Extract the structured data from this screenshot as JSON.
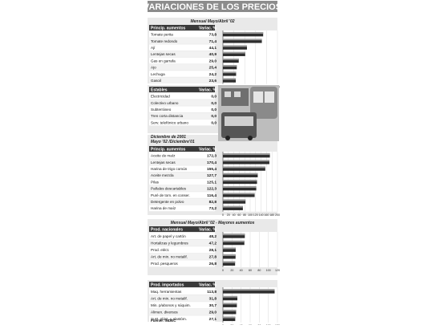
{
  "title": "VARIACIONES DE LOS PRECIOS",
  "source": "Fuente: INDEC",
  "colors": {
    "panel": "#e9e9e9",
    "header_dark": "#3a3a3a",
    "bar_dark": "#2d2d2d",
    "bar_light": "#9a9a9a",
    "row_alt": "#f2f2f2",
    "title_bg": "#8c8c8c"
  },
  "chart_data": [
    {
      "type": "bar",
      "subtitle": "Mensual Mayo/Abril '02",
      "col_label": "Princip. aumentos",
      "val_label": "Variac. %",
      "categories": [
        "Tomate perita",
        "Tomate redondo",
        "Ají",
        "Lentejas secas",
        "Gas en garrafa",
        "Ajo",
        "Lechuga",
        "Gasoil"
      ],
      "display": [
        "73,8",
        "71,4",
        "44,1",
        "40,9",
        "29,0",
        "25,4",
        "24,2",
        "23,6"
      ],
      "values": [
        73.8,
        71.4,
        44.1,
        40.9,
        29.0,
        25.4,
        24.2,
        23.6
      ],
      "ticks": [
        "0",
        "20",
        "40",
        "60",
        "80",
        "100"
      ],
      "xlim": [
        0,
        100
      ]
    },
    {
      "type": "table",
      "col_label": "Estables",
      "val_label": "Variac. %",
      "categories": [
        "Electricidad",
        "Colectivo urbano",
        "Subterráneo",
        "Tren corta distancia",
        "Serv. telefónico urbano"
      ],
      "display": [
        "0,0",
        "0,0",
        "0,0",
        "0,0",
        "0,0"
      ],
      "values": [
        0,
        0,
        0,
        0,
        0
      ]
    },
    {
      "type": "bar",
      "subtitle": "Diciembre de 2001",
      "subtitle2": "Mayo '02 /Diciembre'01",
      "col_label": "Princip. aumentos",
      "val_label": "Variac. %",
      "categories": [
        "Aceite de maíz",
        "Lentejas secas",
        "Harina de trigo común",
        "Aceite mezcla",
        "Pilas",
        "Pañales descartables",
        "Puré de tom. en conser.",
        "Detergente en polvo",
        "Harina de maíz"
      ],
      "display": [
        "172,3",
        "170,4",
        "155,4",
        "127,7",
        "125,1",
        "122,3",
        "116,4",
        "82,8",
        "73,2"
      ],
      "values": [
        172.3,
        170.4,
        155.4,
        127.7,
        125.1,
        122.3,
        116.4,
        82.8,
        73.2
      ],
      "ticks": [
        "0",
        "20",
        "40",
        "60",
        "80",
        "100",
        "120",
        "140",
        "160",
        "180",
        "200"
      ],
      "xlim": [
        0,
        200
      ]
    },
    {
      "type": "bar",
      "subtitle": "Mensual Mayo/Abril '02 - Mayores aumentos",
      "col_label": "Prod. nacionales",
      "val_label": "Variac. %",
      "categories": [
        "Art. de papel y cartón",
        "Hortalizas y legumbres",
        "Prod. eléct.",
        "Art. de min. no metalif.",
        "Prod. pesqueros"
      ],
      "display": [
        "48,2",
        "47,2",
        "28,1",
        "27,8",
        "26,8"
      ],
      "values": [
        48.2,
        47.2,
        28.1,
        27.8,
        26.8
      ],
      "ticks": [
        "0",
        "20",
        "40",
        "60",
        "80",
        "100",
        "120"
      ],
      "xlim": [
        0,
        120
      ]
    },
    {
      "type": "bar",
      "col_label": "Prod. importados",
      "val_label": "Variac. %",
      "categories": [
        "Maq. herramientas",
        "Art. de min. no metalif.",
        "Min. p/abonos y súquim.",
        "Alimen. diversos",
        "Sust. plást. y elastóm."
      ],
      "display": [
        "113,8",
        "31,8",
        "30,7",
        "29,0",
        "27,1"
      ],
      "values": [
        113.8,
        31.8,
        30.7,
        29.0,
        27.1
      ],
      "ticks": [
        "0",
        "20",
        "40",
        "60",
        "80",
        "100",
        "120"
      ],
      "xlim": [
        0,
        120
      ]
    }
  ]
}
